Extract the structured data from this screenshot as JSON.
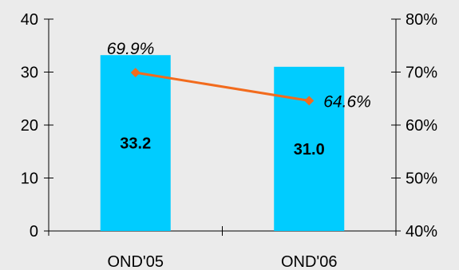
{
  "chart_data": {
    "type": "bar+line",
    "categories": [
      "OND'05",
      "OND'06"
    ],
    "bar_series": {
      "values": [
        33.2,
        31.0
      ],
      "labels": [
        "33.2",
        "31.0"
      ],
      "color": "#00ccff"
    },
    "line_series": {
      "values": [
        69.9,
        64.6
      ],
      "labels": [
        "69.9%",
        "64.6%"
      ],
      "color": "#f26b1d"
    },
    "y_left": {
      "min": 0,
      "max": 40,
      "ticks": [
        0,
        10,
        20,
        30,
        40
      ],
      "tick_labels": [
        "0",
        "10",
        "20",
        "30",
        "40"
      ]
    },
    "y_right": {
      "min": 40,
      "max": 80,
      "ticks": [
        40,
        50,
        60,
        70,
        80
      ],
      "tick_labels": [
        "40%",
        "50%",
        "60%",
        "70%",
        "80%"
      ]
    },
    "grid": false,
    "background": "#ebebeb"
  }
}
